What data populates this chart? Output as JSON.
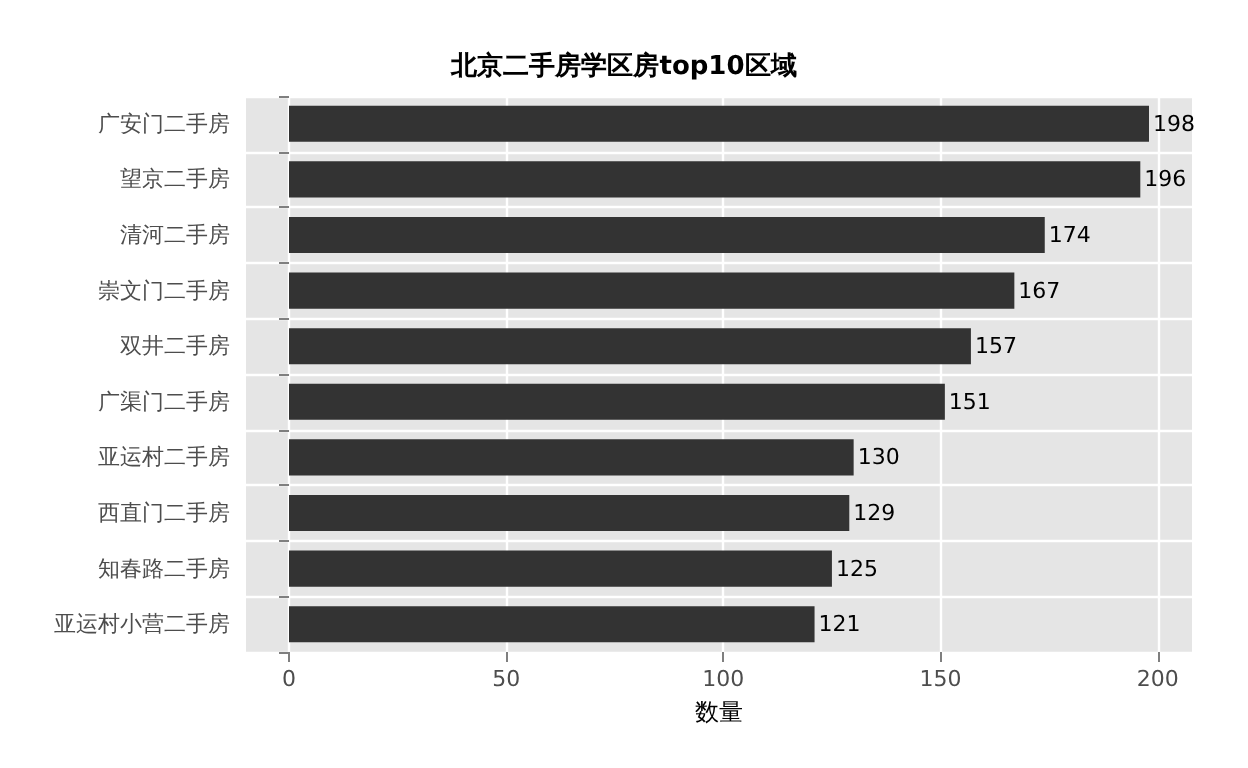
{
  "chart_data": {
    "type": "bar",
    "orientation": "horizontal",
    "title": "北京二手房学区房top10区域",
    "xlabel": "数量",
    "categories": [
      "广安门二手房",
      "望京二手房",
      "清河二手房",
      "崇文门二手房",
      "双井二手房",
      "广渠门二手房",
      "亚运村二手房",
      "西直门二手房",
      "知春路二手房",
      "亚运村小营二手房"
    ],
    "values": [
      198,
      196,
      174,
      167,
      157,
      151,
      130,
      129,
      125,
      121
    ],
    "color": "#333333",
    "xlim": [
      -9.9,
      207.9
    ],
    "xticks": [
      0,
      50,
      100,
      150,
      200
    ],
    "grid": true,
    "data_labels": true
  }
}
